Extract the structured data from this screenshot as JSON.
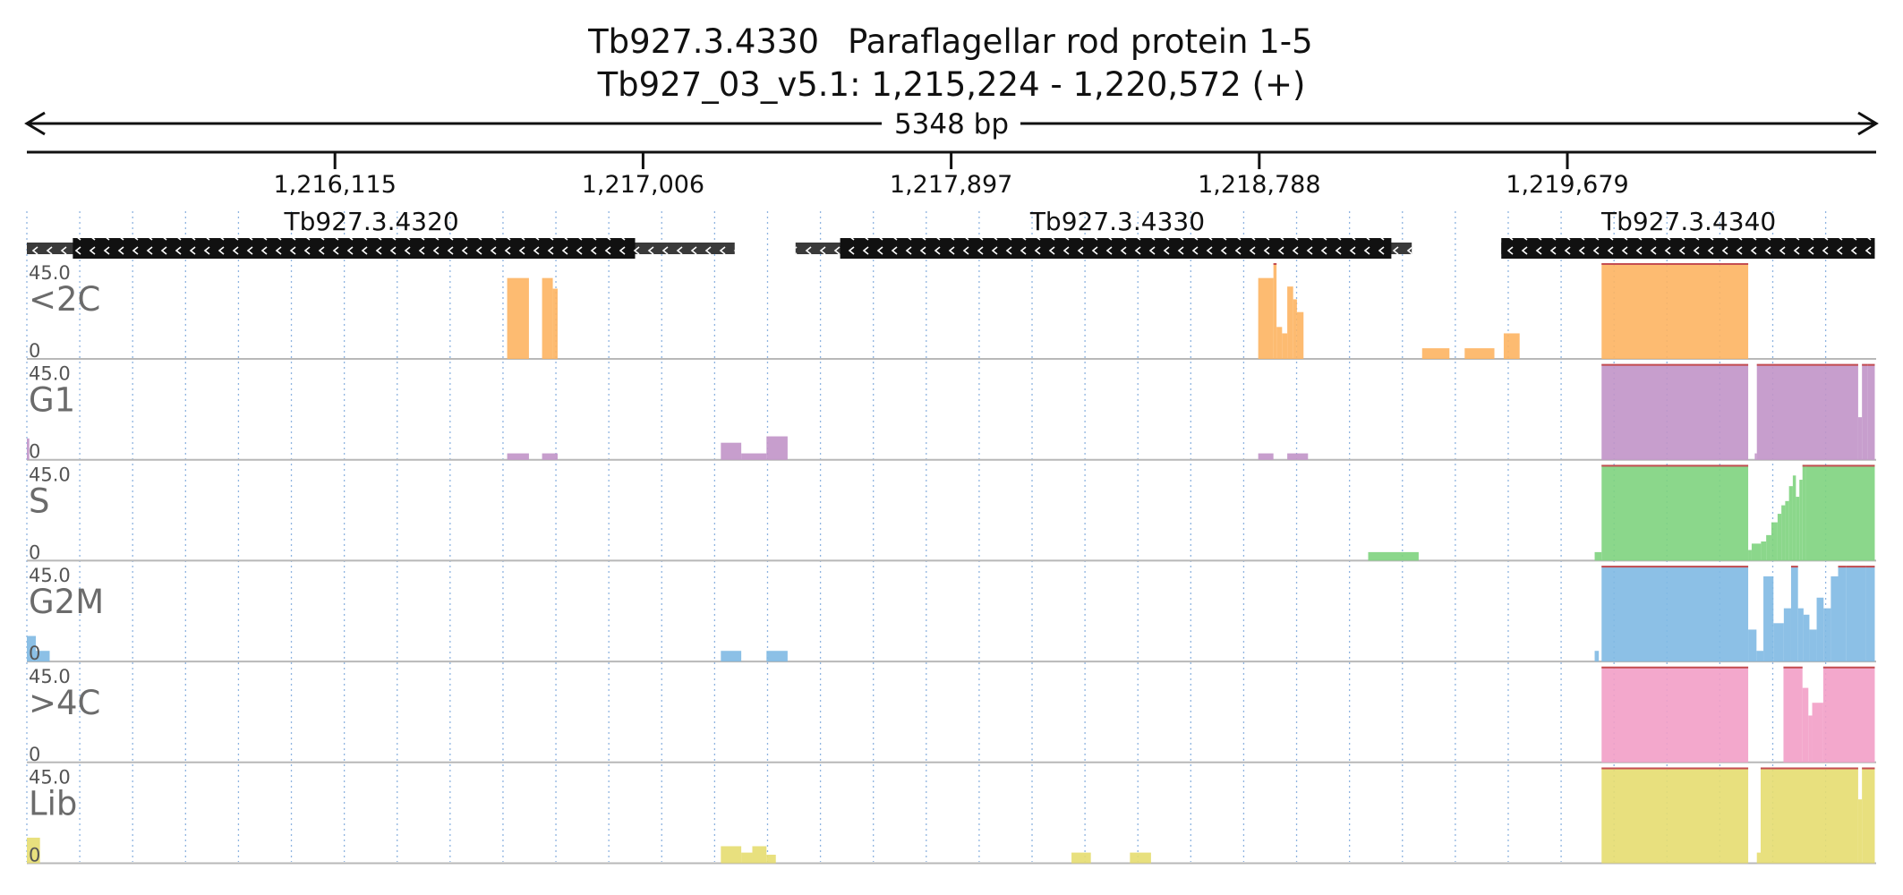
{
  "title": {
    "gene": "Tb927.3.4330",
    "product": "Paraflagellar rod protein 1-5",
    "locus": "Tb927_03_v5.1: 1,215,224 - 1,220,572 (+)"
  },
  "span_label": "5348 bp",
  "chart_data": {
    "type": "area",
    "region": {
      "start": 1215224,
      "end": 1220572,
      "strand": "+"
    },
    "ticks": [
      {
        "pos": 1216115,
        "label": "1,216,115"
      },
      {
        "pos": 1217006,
        "label": "1,217,006"
      },
      {
        "pos": 1217897,
        "label": "1,217,897"
      },
      {
        "pos": 1218788,
        "label": "1,218,788"
      },
      {
        "pos": 1219679,
        "label": "1,219,679"
      }
    ],
    "genes": [
      {
        "name": "Tb927.3.4320",
        "strand": "-",
        "utr": [
          1215224,
          1217271
        ],
        "cds": [
          1215357,
          1216983
        ],
        "label_pos": 1216221
      },
      {
        "name": "Tb927.3.4330",
        "strand": "-",
        "utr": [
          1217447,
          1219229
        ],
        "cds": [
          1217576,
          1219170
        ],
        "label_pos": 1218378
      },
      {
        "name": "Tb927.3.4340",
        "strand": "-",
        "utr": [
          1219488,
          1220568
        ],
        "cds": [
          1219488,
          1220568
        ],
        "label_pos": 1220030
      }
    ],
    "ylim": [
      0,
      45.0
    ],
    "y_max_label": "45.0",
    "y_min_label": "0",
    "gridlines_every_bp": 153,
    "tracks": [
      {
        "name": "<2C",
        "color": "#fdb462",
        "clip_color": "#c44e52",
        "segments": [
          [
            1216613,
            1216676,
            38
          ],
          [
            1216676,
            1216714,
            0
          ],
          [
            1216714,
            1216745,
            38
          ],
          [
            1216745,
            1216759,
            33
          ],
          [
            1218785,
            1218829,
            38
          ],
          [
            1218829,
            1218838,
            45
          ],
          [
            1218838,
            1218854,
            15
          ],
          [
            1218854,
            1218869,
            12
          ],
          [
            1218869,
            1218886,
            34
          ],
          [
            1218886,
            1218897,
            28
          ],
          [
            1218897,
            1218916,
            22
          ],
          [
            1219259,
            1219338,
            5
          ],
          [
            1219382,
            1219468,
            5
          ],
          [
            1219495,
            1219541,
            12
          ],
          [
            1219778,
            1220202,
            45
          ]
        ]
      },
      {
        "name": "G1",
        "color": "#c194c8",
        "clip_color": "#c44e52",
        "segments": [
          [
            1215224,
            1215231,
            10
          ],
          [
            1216613,
            1216676,
            3
          ],
          [
            1216714,
            1216759,
            3
          ],
          [
            1217231,
            1217290,
            8
          ],
          [
            1217290,
            1217363,
            3
          ],
          [
            1217363,
            1217424,
            11
          ],
          [
            1218785,
            1218829,
            3
          ],
          [
            1218869,
            1218929,
            3
          ],
          [
            1219778,
            1220202,
            45
          ],
          [
            1220202,
            1220221,
            0
          ],
          [
            1220221,
            1220227,
            3
          ],
          [
            1220227,
            1220520,
            45
          ],
          [
            1220520,
            1220531,
            20
          ],
          [
            1220531,
            1220547,
            45
          ],
          [
            1220547,
            1220568,
            45
          ]
        ]
      },
      {
        "name": "S",
        "color": "#7ed37e",
        "clip_color": "#c44e52",
        "segments": [
          [
            1219103,
            1219249,
            4
          ],
          [
            1219758,
            1219778,
            4
          ],
          [
            1219778,
            1220202,
            45
          ],
          [
            1220202,
            1220212,
            5
          ],
          [
            1220212,
            1220239,
            8
          ],
          [
            1220239,
            1220254,
            9
          ],
          [
            1220254,
            1220269,
            12
          ],
          [
            1220269,
            1220287,
            18
          ],
          [
            1220287,
            1220298,
            22
          ],
          [
            1220298,
            1220309,
            26
          ],
          [
            1220309,
            1220320,
            28
          ],
          [
            1220320,
            1220331,
            35
          ],
          [
            1220331,
            1220340,
            40
          ],
          [
            1220340,
            1220350,
            30
          ],
          [
            1220350,
            1220359,
            38
          ],
          [
            1220359,
            1220369,
            45
          ],
          [
            1220369,
            1220568,
            45
          ]
        ]
      },
      {
        "name": "G2M",
        "color": "#80b9e3",
        "clip_color": "#c44e52",
        "segments": [
          [
            1215224,
            1215250,
            12
          ],
          [
            1215250,
            1215290,
            5
          ],
          [
            1217231,
            1217290,
            5
          ],
          [
            1217363,
            1217424,
            5
          ],
          [
            1219758,
            1219770,
            5
          ],
          [
            1219778,
            1220202,
            45
          ],
          [
            1220202,
            1220226,
            15
          ],
          [
            1220226,
            1220246,
            5
          ],
          [
            1220246,
            1220275,
            40
          ],
          [
            1220275,
            1220305,
            18
          ],
          [
            1220305,
            1220326,
            25
          ],
          [
            1220326,
            1220346,
            45
          ],
          [
            1220346,
            1220362,
            25
          ],
          [
            1220362,
            1220379,
            22
          ],
          [
            1220379,
            1220400,
            15
          ],
          [
            1220400,
            1220420,
            30
          ],
          [
            1220420,
            1220441,
            25
          ],
          [
            1220441,
            1220462,
            40
          ],
          [
            1220462,
            1220486,
            45
          ],
          [
            1220486,
            1220528,
            45
          ],
          [
            1220528,
            1220542,
            45
          ],
          [
            1220542,
            1220568,
            45
          ]
        ]
      },
      {
        "name": ">4C",
        "color": "#f29ec6",
        "clip_color": "#c44e52",
        "segments": [
          [
            1219778,
            1220202,
            45
          ],
          [
            1220304,
            1220359,
            45
          ],
          [
            1220359,
            1220376,
            35
          ],
          [
            1220376,
            1220387,
            22
          ],
          [
            1220387,
            1220419,
            28
          ],
          [
            1220419,
            1220568,
            45
          ]
        ]
      },
      {
        "name": "Lib",
        "color": "#e6dd70",
        "clip_color": "#c44e52",
        "segments": [
          [
            1215224,
            1215262,
            12
          ],
          [
            1217231,
            1217290,
            8
          ],
          [
            1217290,
            1217322,
            5
          ],
          [
            1217322,
            1217363,
            8
          ],
          [
            1217363,
            1217390,
            4
          ],
          [
            1218245,
            1218301,
            5
          ],
          [
            1218414,
            1218475,
            5
          ],
          [
            1219778,
            1220202,
            45
          ],
          [
            1220202,
            1220227,
            0
          ],
          [
            1220227,
            1220238,
            5
          ],
          [
            1220238,
            1220269,
            45
          ],
          [
            1220269,
            1220520,
            45
          ],
          [
            1220520,
            1220531,
            30
          ],
          [
            1220531,
            1220568,
            45
          ]
        ]
      }
    ]
  }
}
